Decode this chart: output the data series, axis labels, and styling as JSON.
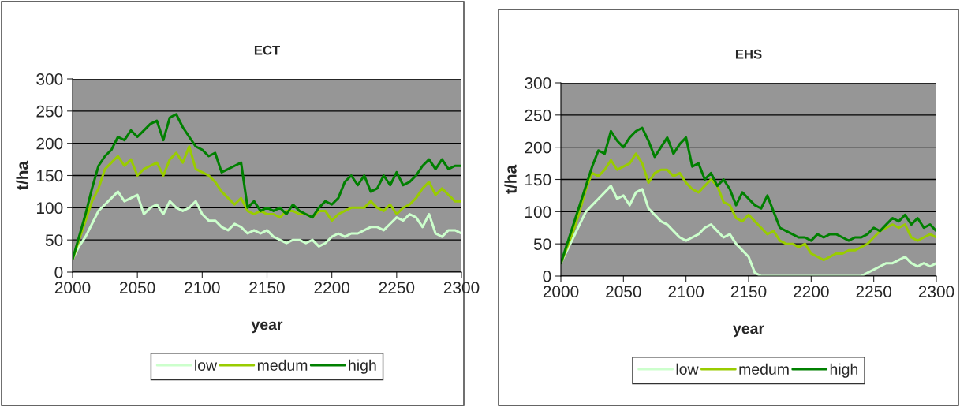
{
  "chart_data": [
    {
      "type": "line",
      "title": "ECT",
      "xlabel": "year",
      "ylabel": "t/ha",
      "xlim": [
        2000,
        2300
      ],
      "xticks": [
        2000,
        2050,
        2100,
        2150,
        2200,
        2250,
        2300
      ],
      "ylim": [
        0,
        300
      ],
      "yticks": [
        0,
        50,
        100,
        150,
        200,
        250,
        300
      ],
      "grid": "y",
      "legend": "bottom",
      "marker": "none",
      "line_style": "solid",
      "x": [
        2000,
        2005,
        2010,
        2015,
        2020,
        2025,
        2030,
        2035,
        2040,
        2045,
        2050,
        2055,
        2060,
        2065,
        2070,
        2075,
        2080,
        2085,
        2090,
        2095,
        2100,
        2105,
        2110,
        2115,
        2120,
        2125,
        2130,
        2135,
        2140,
        2145,
        2150,
        2155,
        2160,
        2165,
        2170,
        2175,
        2180,
        2185,
        2190,
        2195,
        2200,
        2205,
        2210,
        2215,
        2220,
        2225,
        2230,
        2235,
        2240,
        2245,
        2250,
        2255,
        2260,
        2265,
        2270,
        2275,
        2280,
        2285,
        2290,
        2295,
        2300
      ],
      "series": [
        {
          "name": "low",
          "color": "#ccffcc",
          "values": [
            20,
            40,
            55,
            75,
            95,
            105,
            115,
            125,
            110,
            115,
            120,
            90,
            100,
            105,
            90,
            110,
            100,
            95,
            100,
            110,
            90,
            80,
            80,
            70,
            65,
            75,
            70,
            60,
            65,
            60,
            65,
            55,
            50,
            45,
            50,
            50,
            45,
            50,
            40,
            45,
            55,
            60,
            55,
            60,
            60,
            65,
            70,
            70,
            65,
            75,
            85,
            80,
            90,
            85,
            70,
            90,
            60,
            55,
            65,
            65,
            60
          ]
        },
        {
          "name": "medum",
          "color": "#99cc00",
          "values": [
            20,
            50,
            80,
            110,
            130,
            160,
            170,
            180,
            165,
            175,
            150,
            160,
            165,
            170,
            150,
            175,
            185,
            170,
            195,
            160,
            155,
            150,
            140,
            125,
            115,
            105,
            115,
            95,
            90,
            95,
            90,
            90,
            85,
            95,
            95,
            90,
            90,
            85,
            95,
            95,
            80,
            90,
            95,
            100,
            100,
            100,
            110,
            100,
            95,
            105,
            90,
            100,
            105,
            115,
            130,
            140,
            120,
            130,
            120,
            110,
            110
          ]
        },
        {
          "name": "high",
          "color": "#008000",
          "values": [
            20,
            55,
            90,
            130,
            165,
            180,
            190,
            210,
            205,
            220,
            210,
            220,
            230,
            235,
            205,
            240,
            245,
            225,
            210,
            195,
            190,
            180,
            185,
            155,
            160,
            165,
            170,
            100,
            110,
            95,
            100,
            95,
            100,
            90,
            105,
            95,
            90,
            85,
            100,
            110,
            105,
            115,
            140,
            150,
            135,
            150,
            125,
            130,
            150,
            135,
            155,
            135,
            140,
            150,
            165,
            175,
            160,
            175,
            160,
            165,
            165
          ]
        }
      ]
    },
    {
      "type": "line",
      "title": "EHS",
      "xlabel": "year",
      "ylabel": "t/ha",
      "xlim": [
        2000,
        2300
      ],
      "xticks": [
        2000,
        2050,
        2100,
        2150,
        2200,
        2250,
        2300
      ],
      "ylim": [
        0,
        300
      ],
      "yticks": [
        0,
        50,
        100,
        150,
        200,
        250,
        300
      ],
      "grid": "y",
      "legend": "bottom",
      "marker": "none",
      "line_style": "solid",
      "x": [
        2000,
        2005,
        2010,
        2015,
        2020,
        2025,
        2030,
        2035,
        2040,
        2045,
        2050,
        2055,
        2060,
        2065,
        2070,
        2075,
        2080,
        2085,
        2090,
        2095,
        2100,
        2105,
        2110,
        2115,
        2120,
        2125,
        2130,
        2135,
        2140,
        2145,
        2150,
        2155,
        2160,
        2165,
        2170,
        2175,
        2180,
        2185,
        2190,
        2195,
        2200,
        2205,
        2210,
        2215,
        2220,
        2225,
        2230,
        2235,
        2240,
        2245,
        2250,
        2255,
        2260,
        2265,
        2270,
        2275,
        2280,
        2285,
        2290,
        2295,
        2300
      ],
      "series": [
        {
          "name": "low",
          "color": "#ccffcc",
          "values": [
            20,
            40,
            60,
            80,
            100,
            110,
            120,
            130,
            140,
            120,
            125,
            110,
            130,
            135,
            105,
            95,
            85,
            80,
            70,
            60,
            55,
            60,
            65,
            75,
            80,
            70,
            60,
            65,
            50,
            40,
            30,
            5,
            0,
            0,
            0,
            0,
            0,
            0,
            0,
            0,
            0,
            0,
            0,
            0,
            0,
            0,
            0,
            0,
            0,
            5,
            10,
            15,
            20,
            20,
            25,
            30,
            20,
            15,
            20,
            15,
            20
          ]
        },
        {
          "name": "medum",
          "color": "#99cc00",
          "values": [
            20,
            45,
            70,
            100,
            135,
            160,
            155,
            165,
            180,
            165,
            170,
            175,
            190,
            175,
            145,
            160,
            165,
            165,
            155,
            160,
            145,
            135,
            130,
            140,
            150,
            140,
            115,
            110,
            90,
            85,
            95,
            85,
            75,
            65,
            70,
            55,
            50,
            50,
            45,
            50,
            35,
            30,
            25,
            30,
            35,
            35,
            40,
            40,
            45,
            50,
            60,
            70,
            75,
            80,
            75,
            80,
            60,
            55,
            60,
            65,
            60
          ]
        },
        {
          "name": "high",
          "color": "#008000",
          "values": [
            20,
            50,
            80,
            110,
            140,
            170,
            195,
            190,
            225,
            210,
            200,
            215,
            225,
            230,
            210,
            185,
            200,
            215,
            190,
            205,
            215,
            170,
            175,
            150,
            160,
            140,
            150,
            135,
            110,
            130,
            120,
            110,
            105,
            125,
            100,
            75,
            70,
            65,
            60,
            60,
            55,
            65,
            60,
            65,
            65,
            60,
            55,
            60,
            60,
            65,
            75,
            70,
            80,
            90,
            85,
            95,
            80,
            90,
            75,
            80,
            70
          ]
        }
      ]
    }
  ]
}
